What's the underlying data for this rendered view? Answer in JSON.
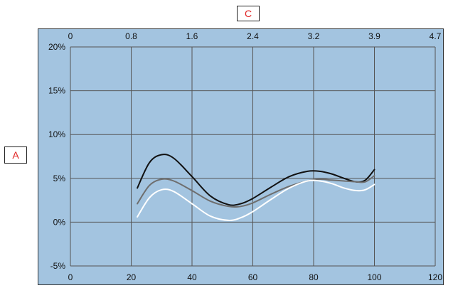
{
  "chart_data": {
    "type": "line",
    "ylabel": "A",
    "x2label": "C",
    "x_ticks": [
      "0",
      "20",
      "40",
      "60",
      "80",
      "100",
      "120"
    ],
    "x2_ticks": [
      "0",
      "0.8",
      "1.6",
      "2.4",
      "3.2",
      "3.9",
      "4.7"
    ],
    "y_ticks": [
      "-5%",
      "0%",
      "5%",
      "10%",
      "15%",
      "20%"
    ],
    "xlim": [
      0,
      120
    ],
    "ylim": [
      -5,
      20
    ],
    "grid": true,
    "colors": {
      "background": "#a3c4e0",
      "grid": "#555555"
    },
    "series": [
      {
        "color": "#111111",
        "x": [
          22,
          26,
          30,
          34,
          40,
          46,
          52,
          56,
          60,
          66,
          72,
          78,
          82,
          86,
          90,
          94,
          97,
          100
        ],
        "y": [
          3.9,
          6.8,
          7.7,
          7.3,
          5.2,
          3.0,
          2.0,
          2.1,
          2.7,
          4.0,
          5.2,
          5.8,
          5.8,
          5.5,
          5.0,
          4.6,
          4.8,
          6.0
        ]
      },
      {
        "color": "#6e6e6e",
        "x": [
          22,
          26,
          30,
          34,
          40,
          46,
          52,
          56,
          60,
          66,
          72,
          78,
          82,
          86,
          90,
          94,
          97,
          100
        ],
        "y": [
          2.1,
          4.2,
          4.9,
          4.7,
          3.6,
          2.4,
          1.8,
          1.8,
          2.2,
          3.2,
          4.1,
          4.7,
          4.9,
          4.8,
          4.7,
          4.6,
          4.6,
          5.3
        ]
      },
      {
        "color": "#ffffff",
        "x": [
          22,
          26,
          30,
          34,
          40,
          46,
          52,
          56,
          60,
          66,
          72,
          78,
          82,
          86,
          90,
          94,
          97,
          100
        ],
        "y": [
          0.6,
          2.8,
          3.7,
          3.5,
          2.1,
          0.7,
          0.2,
          0.5,
          1.2,
          2.6,
          3.9,
          4.7,
          4.7,
          4.4,
          3.9,
          3.6,
          3.7,
          4.3
        ]
      }
    ]
  }
}
